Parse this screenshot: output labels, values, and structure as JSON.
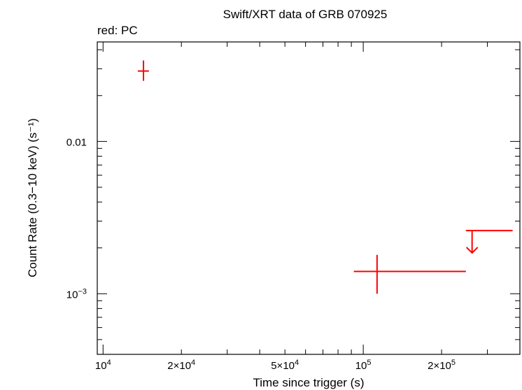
{
  "chart_data": {
    "type": "scatter",
    "title": "Swift/XRT data of GRB 070925",
    "subtitle": "red: PC",
    "xlabel": "Time since trigger (s)",
    "ylabel": "Count Rate (0.3−10 keV) (s⁻¹)",
    "x_scale": "log",
    "y_scale": "log",
    "xlim": [
      9500,
      400000
    ],
    "ylim": [
      0.0004,
      0.045
    ],
    "x_ticks": [
      {
        "value": 10000,
        "base": "10",
        "exp": "4"
      },
      {
        "value": 20000,
        "base": "2×10",
        "exp": "4"
      },
      {
        "value": 50000,
        "base": "5×10",
        "exp": "4"
      },
      {
        "value": 100000,
        "base": "10",
        "exp": "5"
      },
      {
        "value": 200000,
        "base": "2×10",
        "exp": "5"
      }
    ],
    "y_ticks": [
      {
        "value": 0.001,
        "base": "10",
        "exp": "−3"
      },
      {
        "value": 0.01,
        "base": "0.01",
        "exp": ""
      }
    ],
    "color": "#ff0000",
    "points": [
      {
        "x": 14300,
        "x_lo": 13600,
        "x_hi": 15000,
        "y": 0.029,
        "y_lo": 0.025,
        "y_hi": 0.034,
        "upper_limit": false
      },
      {
        "x": 113000,
        "x_lo": 92000,
        "x_hi": 248000,
        "y": 0.0014,
        "y_lo": 0.001,
        "y_hi": 0.0018,
        "upper_limit": false
      },
      {
        "x": 262000,
        "x_lo": 248000,
        "x_hi": 375000,
        "y": 0.0026,
        "upper_limit": true
      }
    ]
  }
}
